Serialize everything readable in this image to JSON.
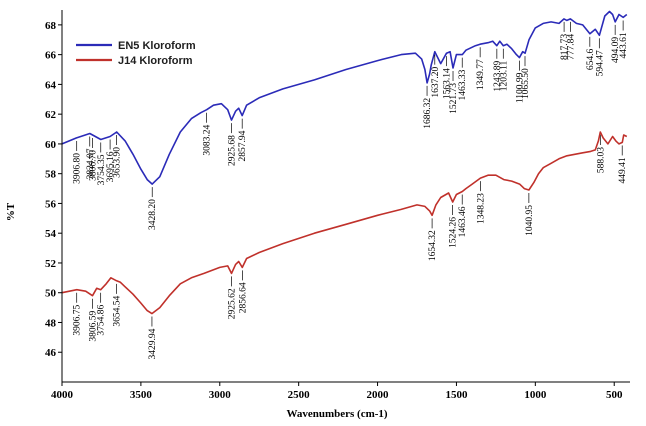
{
  "chart_data": {
    "type": "line",
    "xlabel": "Wavenumbers (cm-1)",
    "ylabel": "%T",
    "xlim": [
      4000,
      400
    ],
    "ylim": [
      44,
      69
    ],
    "x_ticks": [
      4000,
      3500,
      3000,
      2500,
      2000,
      1500,
      1000,
      500
    ],
    "y_ticks": [
      46,
      48,
      50,
      52,
      54,
      56,
      58,
      60,
      62,
      64,
      66,
      68
    ],
    "grid": false,
    "legend_position": "top-left",
    "series": [
      {
        "name": "EN5 Kloroform",
        "color": "#2b2bb8",
        "points": [
          [
            4000,
            60.0
          ],
          [
            3910,
            60.4
          ],
          [
            3824,
            60.7
          ],
          [
            3806,
            60.6
          ],
          [
            3754,
            60.3
          ],
          [
            3695,
            60.5
          ],
          [
            3653,
            60.8
          ],
          [
            3600,
            60.2
          ],
          [
            3550,
            59.3
          ],
          [
            3500,
            58.3
          ],
          [
            3460,
            57.6
          ],
          [
            3428,
            57.3
          ],
          [
            3380,
            57.8
          ],
          [
            3320,
            59.3
          ],
          [
            3250,
            60.8
          ],
          [
            3180,
            61.7
          ],
          [
            3120,
            62.1
          ],
          [
            3083,
            62.3
          ],
          [
            3040,
            62.6
          ],
          [
            2990,
            62.7
          ],
          [
            2950,
            62.3
          ],
          [
            2926,
            61.6
          ],
          [
            2900,
            62.2
          ],
          [
            2880,
            62.4
          ],
          [
            2858,
            61.9
          ],
          [
            2830,
            62.6
          ],
          [
            2750,
            63.1
          ],
          [
            2600,
            63.7
          ],
          [
            2400,
            64.3
          ],
          [
            2200,
            65.0
          ],
          [
            2000,
            65.6
          ],
          [
            1850,
            66.0
          ],
          [
            1760,
            66.1
          ],
          [
            1720,
            65.7
          ],
          [
            1700,
            65.0
          ],
          [
            1686,
            64.1
          ],
          [
            1670,
            64.7
          ],
          [
            1660,
            65.3
          ],
          [
            1637,
            66.2
          ],
          [
            1600,
            65.4
          ],
          [
            1563,
            66.1
          ],
          [
            1540,
            66.2
          ],
          [
            1522,
            65.1
          ],
          [
            1500,
            66.0
          ],
          [
            1463,
            66.0
          ],
          [
            1440,
            66.3
          ],
          [
            1380,
            66.6
          ],
          [
            1350,
            66.7
          ],
          [
            1300,
            66.8
          ],
          [
            1270,
            66.9
          ],
          [
            1244,
            66.6
          ],
          [
            1225,
            66.9
          ],
          [
            1203,
            66.6
          ],
          [
            1180,
            66.7
          ],
          [
            1150,
            66.4
          ],
          [
            1120,
            66.0
          ],
          [
            1101,
            65.8
          ],
          [
            1080,
            66.2
          ],
          [
            1065,
            66.1
          ],
          [
            1040,
            67.0
          ],
          [
            1000,
            67.8
          ],
          [
            950,
            68.1
          ],
          [
            900,
            68.2
          ],
          [
            850,
            68.1
          ],
          [
            818,
            68.4
          ],
          [
            800,
            68.3
          ],
          [
            778,
            68.4
          ],
          [
            740,
            68.1
          ],
          [
            700,
            68.0
          ],
          [
            654,
            67.4
          ],
          [
            620,
            67.7
          ],
          [
            594,
            67.3
          ],
          [
            560,
            68.6
          ],
          [
            530,
            68.9
          ],
          [
            510,
            68.7
          ],
          [
            494,
            68.2
          ],
          [
            470,
            68.7
          ],
          [
            443,
            68.5
          ],
          [
            420,
            68.7
          ]
        ],
        "labels": [
          {
            "text": "3906.80",
            "x": 3906.8,
            "y": 60.4
          },
          {
            "text": "3824.07",
            "x": 3824.07,
            "y": 60.7
          },
          {
            "text": "3806.70",
            "x": 3806.7,
            "y": 60.6
          },
          {
            "text": "3754.35",
            "x": 3754.35,
            "y": 60.3
          },
          {
            "text": "3695.16",
            "x": 3695.16,
            "y": 60.5
          },
          {
            "text": "3653.90",
            "x": 3653.9,
            "y": 60.8
          },
          {
            "text": "3428.20",
            "x": 3428.2,
            "y": 57.3
          },
          {
            "text": "3083.24",
            "x": 3083.24,
            "y": 62.3
          },
          {
            "text": "2925.68",
            "x": 2925.68,
            "y": 61.6
          },
          {
            "text": "2857.94",
            "x": 2857.94,
            "y": 61.9
          },
          {
            "text": "1686.32",
            "x": 1686.32,
            "y": 64.1
          },
          {
            "text": "1637.20",
            "x": 1637.2,
            "y": 66.2
          },
          {
            "text": "1563.14",
            "x": 1563.14,
            "y": 66.1
          },
          {
            "text": "1521.73",
            "x": 1521.73,
            "y": 65.1
          },
          {
            "text": "1463.33",
            "x": 1463.33,
            "y": 66.0
          },
          {
            "text": "1349.77",
            "x": 1349.77,
            "y": 66.7
          },
          {
            "text": "1243.89",
            "x": 1243.89,
            "y": 66.6
          },
          {
            "text": "1203.11",
            "x": 1203.11,
            "y": 66.6
          },
          {
            "text": "1100.99",
            "x": 1100.99,
            "y": 65.8
          },
          {
            "text": "1065.50",
            "x": 1065.5,
            "y": 66.1
          },
          {
            "text": "817.73",
            "x": 817.73,
            "y": 68.4
          },
          {
            "text": "777.84",
            "x": 777.84,
            "y": 68.4
          },
          {
            "text": "654.6",
            "x": 654.6,
            "y": 67.4
          },
          {
            "text": "594.47",
            "x": 594.47,
            "y": 67.3
          },
          {
            "text": "494.09",
            "x": 494.09,
            "y": 68.2
          },
          {
            "text": "443.61",
            "x": 443.61,
            "y": 68.5
          }
        ]
      },
      {
        "name": "J14 Kloroform",
        "color": "#c0312b",
        "points": [
          [
            4000,
            50.0
          ],
          [
            3906,
            50.2
          ],
          [
            3850,
            50.1
          ],
          [
            3807,
            49.8
          ],
          [
            3780,
            50.3
          ],
          [
            3755,
            50.2
          ],
          [
            3720,
            50.6
          ],
          [
            3690,
            51.0
          ],
          [
            3654,
            50.8
          ],
          [
            3630,
            50.7
          ],
          [
            3600,
            50.4
          ],
          [
            3550,
            49.9
          ],
          [
            3500,
            49.3
          ],
          [
            3460,
            48.8
          ],
          [
            3430,
            48.6
          ],
          [
            3380,
            49.0
          ],
          [
            3320,
            49.8
          ],
          [
            3250,
            50.6
          ],
          [
            3180,
            51.0
          ],
          [
            3100,
            51.3
          ],
          [
            3000,
            51.7
          ],
          [
            2950,
            51.8
          ],
          [
            2926,
            51.3
          ],
          [
            2900,
            51.9
          ],
          [
            2880,
            52.1
          ],
          [
            2857,
            51.7
          ],
          [
            2830,
            52.3
          ],
          [
            2750,
            52.7
          ],
          [
            2600,
            53.3
          ],
          [
            2400,
            54.0
          ],
          [
            2200,
            54.6
          ],
          [
            2000,
            55.2
          ],
          [
            1850,
            55.6
          ],
          [
            1750,
            55.9
          ],
          [
            1700,
            55.8
          ],
          [
            1670,
            55.5
          ],
          [
            1654,
            55.2
          ],
          [
            1630,
            55.9
          ],
          [
            1600,
            56.4
          ],
          [
            1550,
            56.7
          ],
          [
            1524,
            56.1
          ],
          [
            1500,
            56.6
          ],
          [
            1463,
            56.8
          ],
          [
            1440,
            57.0
          ],
          [
            1400,
            57.3
          ],
          [
            1348,
            57.7
          ],
          [
            1300,
            57.9
          ],
          [
            1250,
            57.9
          ],
          [
            1200,
            57.6
          ],
          [
            1150,
            57.5
          ],
          [
            1100,
            57.3
          ],
          [
            1070,
            57.0
          ],
          [
            1041,
            56.9
          ],
          [
            1010,
            57.4
          ],
          [
            980,
            58.0
          ],
          [
            950,
            58.4
          ],
          [
            900,
            58.7
          ],
          [
            850,
            59.0
          ],
          [
            800,
            59.2
          ],
          [
            750,
            59.3
          ],
          [
            700,
            59.4
          ],
          [
            650,
            59.5
          ],
          [
            620,
            59.6
          ],
          [
            600,
            60.2
          ],
          [
            588,
            60.8
          ],
          [
            570,
            60.4
          ],
          [
            540,
            60.0
          ],
          [
            510,
            60.5
          ],
          [
            490,
            60.2
          ],
          [
            470,
            60.0
          ],
          [
            449,
            60.1
          ],
          [
            440,
            60.6
          ],
          [
            420,
            60.5
          ]
        ],
        "labels": [
          {
            "text": "3906.75",
            "x": 3906.75,
            "y": 50.2
          },
          {
            "text": "3806.59",
            "x": 3806.59,
            "y": 49.8
          },
          {
            "text": "3754.86",
            "x": 3754.86,
            "y": 50.2
          },
          {
            "text": "3654.54",
            "x": 3654.54,
            "y": 50.8
          },
          {
            "text": "3429.94",
            "x": 3429.94,
            "y": 48.6
          },
          {
            "text": "2925.62",
            "x": 2925.62,
            "y": 51.3
          },
          {
            "text": "2856.64",
            "x": 2856.64,
            "y": 51.7
          },
          {
            "text": "1654.32",
            "x": 1654.32,
            "y": 55.2
          },
          {
            "text": "1524.26",
            "x": 1524.26,
            "y": 56.1
          },
          {
            "text": "1463.46",
            "x": 1463.46,
            "y": 56.8
          },
          {
            "text": "1348.23",
            "x": 1348.23,
            "y": 57.7
          },
          {
            "text": "1040.95",
            "x": 1040.95,
            "y": 56.9
          },
          {
            "text": "588.03",
            "x": 588.03,
            "y": 60.8
          },
          {
            "text": "449.41",
            "x": 449.41,
            "y": 60.1
          }
        ]
      }
    ]
  }
}
